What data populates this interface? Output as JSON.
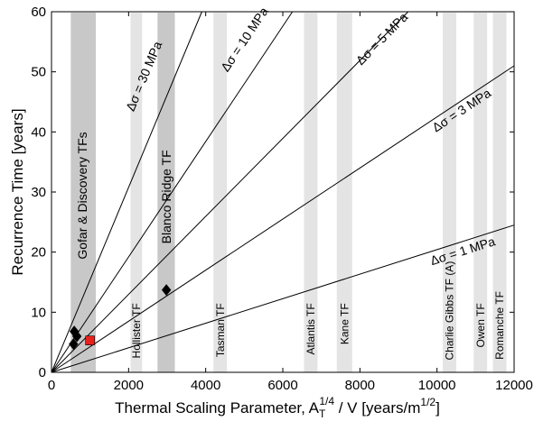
{
  "chart_data": {
    "type": "scatter",
    "title": "",
    "xlabel_parts": {
      "pre": "Thermal Scaling Parameter, A",
      "sub": "T",
      "sup": "1/4",
      "mid": " / V [years/m",
      "sup2": "1/2",
      "post": "]"
    },
    "ylabel": "Recurrence Time [years]",
    "xlim": [
      0,
      12000
    ],
    "ylim": [
      0,
      60
    ],
    "x_ticks": [
      0,
      2000,
      4000,
      6000,
      8000,
      10000,
      12000
    ],
    "y_ticks": [
      0,
      10,
      20,
      30,
      40,
      50,
      60
    ],
    "x_tick_labels": [
      "0",
      "2000",
      "4000",
      "6000",
      "8000",
      "10000",
      "12000"
    ],
    "y_tick_labels": [
      "0",
      "10",
      "20",
      "30",
      "40",
      "50",
      "60"
    ],
    "grid": false,
    "bands": [
      {
        "label": "Gofar & Discovery TFs",
        "x0": 500,
        "x1": 1150,
        "shade": "#c8c8c8",
        "label_x": 800,
        "label_y_top": 40,
        "font": 14
      },
      {
        "label": "Hollister TF",
        "x0": 2050,
        "x1": 2350,
        "shade": "#e4e4e4",
        "label_x": 2200,
        "label_y_top": 11.5,
        "font": 12
      },
      {
        "label": "Blanco Ridge TF",
        "x0": 2750,
        "x1": 3200,
        "shade": "#c8c8c8",
        "label_x": 2975,
        "label_y_top": 37,
        "font": 14
      },
      {
        "label": "Tasman TF",
        "x0": 4200,
        "x1": 4550,
        "shade": "#e4e4e4",
        "label_x": 4375,
        "label_y_top": 11.5,
        "font": 12
      },
      {
        "label": "Atlantis TF",
        "x0": 6550,
        "x1": 6900,
        "shade": "#e4e4e4",
        "label_x": 6725,
        "label_y_top": 11.5,
        "font": 12
      },
      {
        "label": "Kane TF",
        "x0": 7400,
        "x1": 7800,
        "shade": "#e4e4e4",
        "label_x": 7600,
        "label_y_top": 11.5,
        "font": 12
      },
      {
        "label": "Charlie Gibbs TF (A)",
        "x0": 10150,
        "x1": 10500,
        "shade": "#e4e4e4",
        "label_x": 10325,
        "label_y_top": 18.5,
        "font": 12
      },
      {
        "label": "Owen TF",
        "x0": 10950,
        "x1": 11300,
        "shade": "#e4e4e4",
        "label_x": 11125,
        "label_y_top": 11.5,
        "font": 12
      },
      {
        "label": "Romanche TF",
        "x0": 11450,
        "x1": 11800,
        "shade": "#e4e4e4",
        "label_x": 11625,
        "label_y_top": 13.5,
        "font": 12
      }
    ],
    "lines": [
      {
        "label": "Δσ = 30 MPa",
        "x_end": 3900,
        "y_end": 60,
        "label_x": 2500,
        "label_y": 49
      },
      {
        "label": "Δσ = 10 MPa",
        "x_end": 6250,
        "y_end": 60,
        "label_x": 5100,
        "label_y": 55
      },
      {
        "label": "Δσ = 5 MPa",
        "x_end": 9250,
        "y_end": 60,
        "label_x": 8650,
        "label_y": 55
      },
      {
        "label": "Δσ = 3 MPa",
        "x_end": 12000,
        "y_end": 51,
        "label_x": 10700,
        "label_y": 43
      },
      {
        "label": "Δσ = 1 MPa",
        "x_end": 12000,
        "y_end": 24.5,
        "label_x": 10700,
        "label_y": 19.5
      }
    ],
    "points": [
      {
        "x": 570,
        "y": 4.7,
        "marker": "diamond",
        "color": "#000000"
      },
      {
        "x": 590,
        "y": 6.8,
        "marker": "diamond",
        "color": "#000000"
      },
      {
        "x": 660,
        "y": 6.0,
        "marker": "diamond",
        "color": "#000000"
      },
      {
        "x": 2980,
        "y": 13.7,
        "marker": "diamond",
        "color": "#000000"
      },
      {
        "x": 1000,
        "y": 5.3,
        "marker": "square",
        "color": "#e8211b"
      }
    ]
  }
}
